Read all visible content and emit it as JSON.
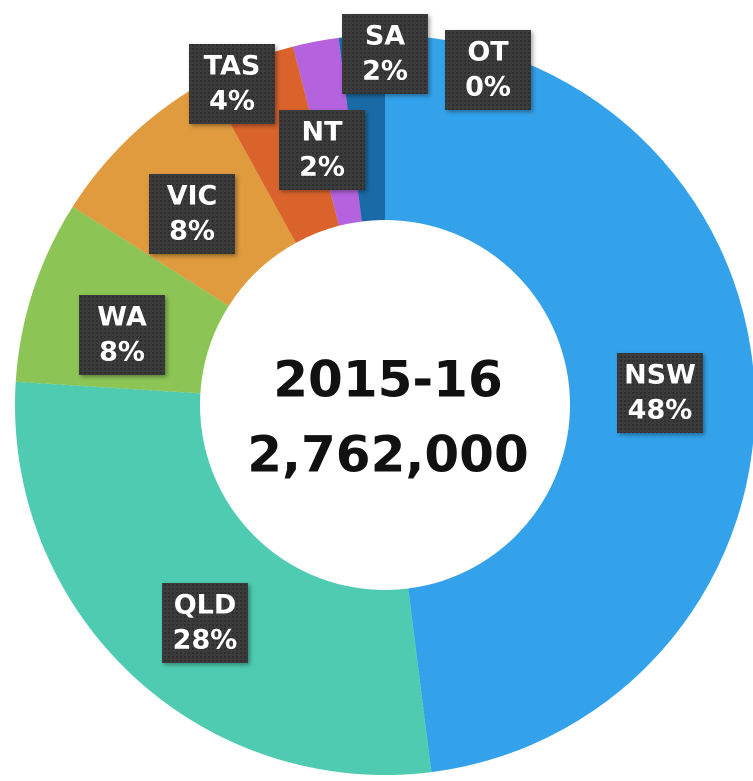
{
  "chart_data": {
    "type": "pie",
    "donut": true,
    "categories": [
      "NSW",
      "QLD",
      "WA",
      "VIC",
      "TAS",
      "NT",
      "SA",
      "OT"
    ],
    "values": [
      48,
      28,
      8,
      8,
      4,
      2,
      2,
      0
    ],
    "value_labels": [
      "48%",
      "28%",
      "8%",
      "8%",
      "4%",
      "2%",
      "2%",
      "0%"
    ],
    "colors": [
      "#33a2ea",
      "#4ecbb0",
      "#8cc556",
      "#e09b3e",
      "#d9632b",
      "#b462dd",
      "#1a6aa7",
      "#888888"
    ],
    "center_title": "2015-16",
    "total": {
      "value": 2762000,
      "label": "2,762,000"
    }
  }
}
